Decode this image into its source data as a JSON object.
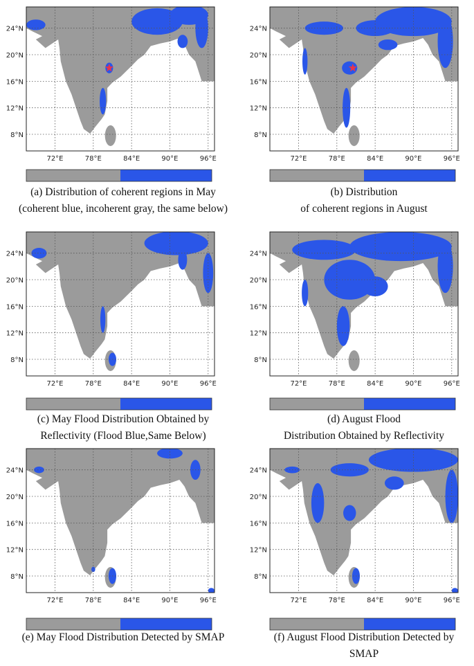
{
  "lat_ticks": [
    "24°N",
    "20°N",
    "16°N",
    "12°N",
    "8°N"
  ],
  "lon_ticks": [
    "72°E",
    "78°E",
    "84°E",
    "90°E",
    "96°E"
  ],
  "panels": [
    {
      "caption": [
        "(a) Distribution of coherent regions in May",
        "(coherent blue, incoherent gray, the same below)"
      ]
    },
    {
      "caption": [
        "(b) Distribution",
        "of coherent regions in August"
      ]
    },
    {
      "caption": [
        "(c) May Flood Distribution Obtained by",
        "Reflectivity (Flood Blue,Same Below)"
      ]
    },
    {
      "caption": [
        "(d) August Flood",
        "Distribution Obtained by Reflectivity"
      ]
    },
    {
      "caption": [
        "(e) May Flood Distribution Detected by SMAP"
      ]
    },
    {
      "caption": [
        "(f) August Flood Distribution Detected by",
        "SMAP"
      ]
    }
  ]
}
